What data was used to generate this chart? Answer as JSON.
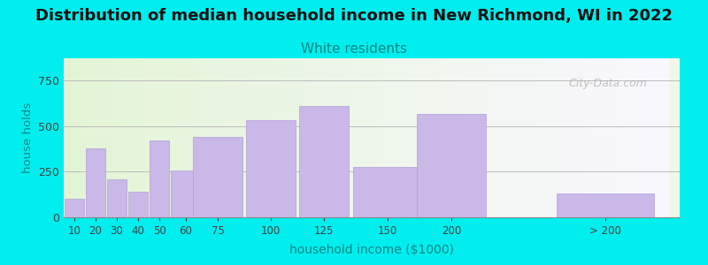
{
  "title": "Distribution of median household income in New Richmond, WI in 2022",
  "subtitle": "White residents",
  "xlabel": "household income ($1000)",
  "ylabel": "house holds",
  "background_outer": "#00EEEE",
  "background_inner_colors": [
    "#e8f5e0",
    "#f5f0fa"
  ],
  "bar_color": "#c9b8e8",
  "bar_edge_color": "#b0a0d8",
  "title_fontsize": 13,
  "subtitle_fontsize": 11,
  "subtitle_color": "#008888",
  "ylabel_color": "#008888",
  "xlabel_color": "#008888",
  "categories": [
    "10",
    "20",
    "30",
    "40",
    "50",
    "60",
    "75",
    "100",
    "125",
    "150",
    "200",
    "> 200"
  ],
  "values": [
    100,
    375,
    210,
    140,
    420,
    255,
    440,
    530,
    610,
    275,
    565,
    130
  ],
  "bar_widths": [
    10,
    10,
    10,
    10,
    10,
    15,
    25,
    25,
    25,
    35,
    35,
    50
  ],
  "bar_lefts": [
    5,
    15,
    25,
    35,
    45,
    55,
    65,
    90,
    115,
    140,
    170,
    235
  ],
  "ylim": [
    0,
    870
  ],
  "yticks": [
    0,
    250,
    500,
    750
  ],
  "watermark": "City-Data.com"
}
